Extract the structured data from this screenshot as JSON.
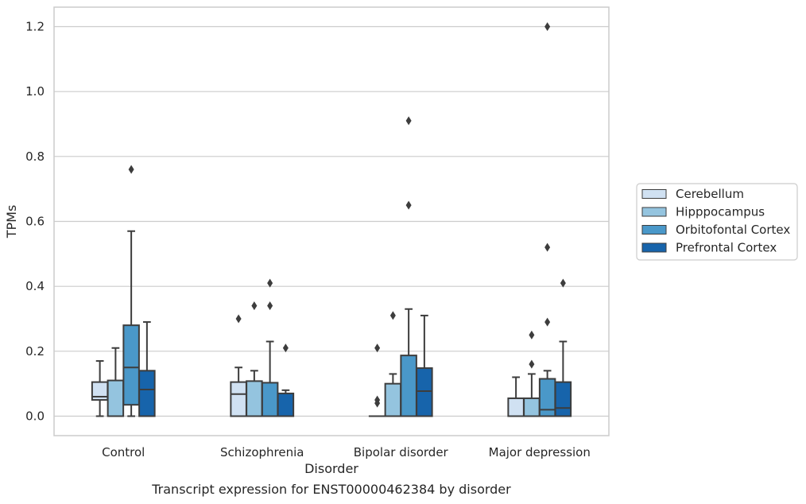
{
  "caption": "Transcript expression for ENST00000462384 by disorder",
  "chart_data": {
    "type": "box",
    "xlabel": "Disorder",
    "ylabel": "TPMs",
    "ylim": [
      -0.06,
      1.26
    ],
    "yticks": [
      0.0,
      0.2,
      0.4,
      0.6,
      0.8,
      1.0,
      1.2
    ],
    "grid": "horizontal",
    "legend_position": "right",
    "categories": [
      "Control",
      "Schizophrenia",
      "Bipolar disorder",
      "Major depression"
    ],
    "series": [
      {
        "name": "Cerebellum",
        "color": "#d0e1f2",
        "boxes": [
          {
            "whislo": 0.0,
            "q1": 0.05,
            "med": 0.06,
            "q3": 0.105,
            "whishi": 0.17,
            "fliers": []
          },
          {
            "whislo": 0.0,
            "q1": 0.0,
            "med": 0.068,
            "q3": 0.105,
            "whishi": 0.15,
            "fliers": [
              0.3
            ]
          },
          {
            "whislo": 0.0,
            "q1": 0.0,
            "med": 0.0,
            "q3": 0.0,
            "whishi": 0.0,
            "fliers": [
              0.04,
              0.05,
              0.21
            ]
          },
          {
            "whislo": 0.0,
            "q1": 0.0,
            "med": 0.0,
            "q3": 0.055,
            "whishi": 0.12,
            "fliers": []
          }
        ]
      },
      {
        "name": "Hipppocampus",
        "color": "#94c4df",
        "boxes": [
          {
            "whislo": 0.0,
            "q1": 0.0,
            "med": 0.0,
            "q3": 0.11,
            "whishi": 0.21,
            "fliers": []
          },
          {
            "whislo": 0.0,
            "q1": 0.0,
            "med": 0.0,
            "q3": 0.108,
            "whishi": 0.14,
            "fliers": [
              0.34
            ]
          },
          {
            "whislo": 0.0,
            "q1": 0.0,
            "med": 0.0,
            "q3": 0.1,
            "whishi": 0.13,
            "fliers": [
              0.31
            ]
          },
          {
            "whislo": 0.0,
            "q1": 0.0,
            "med": 0.0,
            "q3": 0.055,
            "whishi": 0.13,
            "fliers": [
              0.16,
              0.25
            ]
          }
        ]
      },
      {
        "name": "Orbitofontal Cortex",
        "color": "#4a98c9",
        "boxes": [
          {
            "whislo": 0.0,
            "q1": 0.035,
            "med": 0.15,
            "q3": 0.28,
            "whishi": 0.57,
            "fliers": [
              0.76
            ]
          },
          {
            "whislo": 0.0,
            "q1": 0.0,
            "med": 0.0,
            "q3": 0.103,
            "whishi": 0.23,
            "fliers": [
              0.34,
              0.41
            ]
          },
          {
            "whislo": 0.0,
            "q1": 0.0,
            "med": 0.0,
            "q3": 0.187,
            "whishi": 0.33,
            "fliers": [
              0.65,
              0.91
            ]
          },
          {
            "whislo": 0.0,
            "q1": 0.0,
            "med": 0.02,
            "q3": 0.115,
            "whishi": 0.14,
            "fliers": [
              0.29,
              0.52,
              1.2
            ]
          }
        ]
      },
      {
        "name": "Prefrontal Cortex",
        "color": "#1764ab",
        "boxes": [
          {
            "whislo": 0.0,
            "q1": 0.0,
            "med": 0.082,
            "q3": 0.14,
            "whishi": 0.29,
            "fliers": []
          },
          {
            "whislo": 0.0,
            "q1": 0.0,
            "med": 0.0,
            "q3": 0.07,
            "whishi": 0.08,
            "fliers": [
              0.21
            ]
          },
          {
            "whislo": 0.0,
            "q1": 0.0,
            "med": 0.077,
            "q3": 0.148,
            "whishi": 0.31,
            "fliers": []
          },
          {
            "whislo": 0.0,
            "q1": 0.0,
            "med": 0.025,
            "q3": 0.105,
            "whishi": 0.23,
            "fliers": [
              0.41
            ]
          }
        ]
      }
    ]
  }
}
